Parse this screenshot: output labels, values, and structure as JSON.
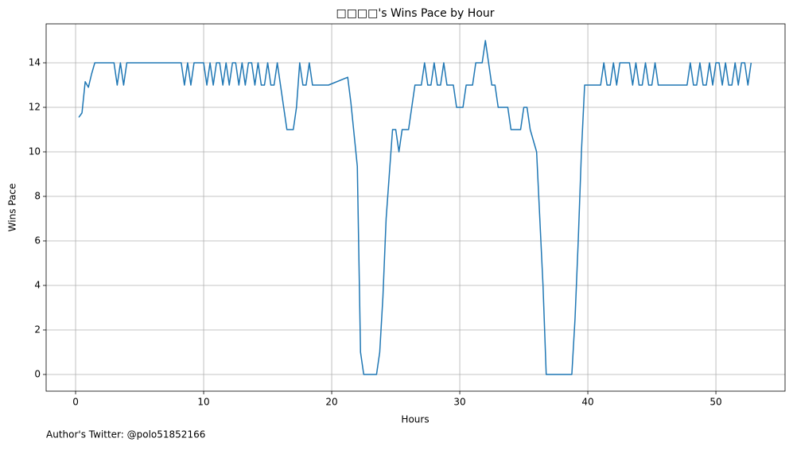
{
  "chart_data": {
    "type": "line",
    "title": "□□□□'s Wins Pace by Hour",
    "x_label": "Hours",
    "y_label": "Wins Pace",
    "footnote": "Author's Twitter: @polo51852166",
    "xlim": [
      -2.3,
      55.4
    ],
    "ylim": [
      -0.75,
      15.75
    ],
    "xticks": [
      0,
      10,
      20,
      30,
      40,
      50
    ],
    "yticks": [
      0,
      2,
      4,
      6,
      8,
      10,
      12,
      14
    ],
    "grid": true,
    "x": [
      0.25,
      0.5,
      0.75,
      1,
      1.25,
      1.5,
      3,
      3.25,
      3.5,
      3.75,
      4,
      8.25,
      8.5,
      8.75,
      9,
      9.25,
      10,
      10.25,
      10.5,
      10.75,
      11,
      11.25,
      11.5,
      11.75,
      12,
      12.25,
      12.5,
      12.75,
      13,
      13.25,
      13.5,
      13.75,
      14,
      14.25,
      14.5,
      14.75,
      15,
      15.25,
      15.5,
      15.75,
      16,
      16.25,
      16.5,
      17,
      17.25,
      17.5,
      17.75,
      18,
      18.25,
      18.5,
      19.75,
      21.25,
      21.5,
      22,
      22.25,
      22.5,
      23.5,
      23.75,
      24,
      24.25,
      24.5,
      24.75,
      25,
      25.25,
      25.5,
      26,
      26.25,
      26.5,
      27,
      27.25,
      27.5,
      27.75,
      28,
      28.25,
      28.5,
      28.75,
      29,
      29.5,
      29.75,
      30.25,
      30.5,
      31,
      31.25,
      31.75,
      32,
      32.25,
      32.5,
      32.75,
      33,
      33.75,
      34,
      34.75,
      35,
      35.25,
      35.5,
      36,
      36.25,
      36.5,
      36.75,
      38.75,
      39,
      39.25,
      39.5,
      39.75,
      41,
      41.25,
      41.5,
      41.75,
      42,
      42.25,
      42.5,
      43.25,
      43.5,
      43.75,
      44,
      44.25,
      44.5,
      44.75,
      45,
      45.25,
      45.5,
      47.75,
      48,
      48.25,
      48.5,
      48.75,
      49,
      49.25,
      49.5,
      49.75,
      50,
      50.25,
      50.5,
      50.75,
      51,
      51.25,
      51.5,
      51.75,
      52,
      52.25,
      52.5,
      52.75
    ],
    "series": [
      {
        "name": "Wins Pace",
        "color": "#1f77b4",
        "values": [
          11.55,
          11.75,
          13.15,
          12.9,
          13.5,
          14,
          14,
          13,
          14,
          13,
          14,
          14,
          13,
          14,
          13,
          14,
          14,
          13,
          14,
          13,
          14,
          14,
          13,
          14,
          13,
          14,
          14,
          13,
          14,
          13,
          14,
          14,
          13,
          14,
          13,
          13,
          14,
          13,
          13,
          14,
          13,
          12,
          11,
          11,
          12,
          14,
          13,
          13,
          14,
          13,
          13,
          13.35,
          12.2,
          9.35,
          1,
          0,
          0,
          1,
          3.5,
          7,
          9,
          11,
          11,
          10,
          11,
          11,
          12,
          13,
          13,
          14,
          13,
          13,
          14,
          13,
          13,
          14,
          13,
          13,
          12,
          12,
          13,
          13,
          14,
          14,
          15,
          14,
          13,
          13,
          12,
          12,
          11,
          11,
          12,
          12,
          11,
          10,
          7,
          4,
          0,
          0,
          2.5,
          6,
          10,
          13,
          13,
          14,
          13,
          13,
          14,
          13,
          14,
          14,
          13,
          14,
          13,
          13,
          14,
          13,
          13,
          14,
          13,
          13,
          14,
          13,
          13,
          14,
          13,
          13,
          14,
          13,
          14,
          14,
          13,
          14,
          13,
          13,
          14,
          13,
          14,
          14,
          13,
          14
        ]
      }
    ]
  }
}
